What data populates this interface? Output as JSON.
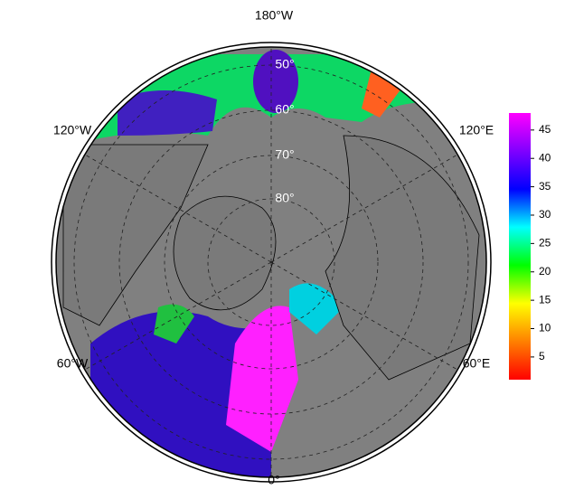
{
  "map": {
    "lon_labels": [
      "180°W",
      "120°W",
      "120°E",
      "60°W",
      "60°E",
      "0°"
    ],
    "lat_labels": [
      "50°",
      "60°",
      "70°",
      "80°"
    ]
  },
  "colorbar": {
    "lim": [
      1,
      48
    ],
    "ticks": [
      5,
      10,
      15,
      20,
      25,
      30,
      35,
      40,
      45
    ],
    "colors": [
      "#ff0000",
      "#ff8000",
      "#ffff00",
      "#00ff00",
      "#00ffff",
      "#0000ff",
      "#8000ff",
      "#ff00ff"
    ]
  }
}
